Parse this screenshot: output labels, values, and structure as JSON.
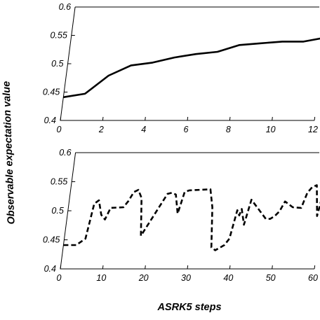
{
  "ylabel": "Observable  expectation  value",
  "xlabel": "ASRK5  steps",
  "chart_data": [
    {
      "type": "line",
      "line_style": "solid",
      "color": "#000000",
      "xlim": [
        0,
        12
      ],
      "ylim": [
        0.4,
        0.6
      ],
      "xticks": [
        "0",
        "2",
        "4",
        "6",
        "8",
        "10",
        "12"
      ],
      "yticks": [
        "0.4",
        "0.45",
        "0.5",
        "0.55",
        "0.6"
      ],
      "x": [
        0,
        1,
        2,
        3,
        4,
        5,
        6,
        7,
        8,
        9,
        10,
        11,
        12
      ],
      "y": [
        0.441,
        0.447,
        0.479,
        0.497,
        0.502,
        0.511,
        0.517,
        0.521,
        0.533,
        0.536,
        0.539,
        0.539,
        0.546
      ],
      "grid": false
    },
    {
      "type": "line",
      "line_style": "dashed",
      "color": "#000000",
      "xlim": [
        0,
        60
      ],
      "ylim": [
        0.4,
        0.6
      ],
      "xticks": [
        "0",
        "10",
        "20",
        "30",
        "40",
        "50",
        "60"
      ],
      "yticks": [
        "0.4",
        "0.45",
        "0.5",
        "0.55",
        "0.6"
      ],
      "x": [
        0,
        3,
        5,
        6,
        7,
        8,
        9,
        10,
        13,
        14,
        15,
        16,
        17,
        18,
        23,
        24,
        25,
        26,
        27,
        28,
        33,
        34,
        35,
        36,
        38,
        39,
        40,
        40.6,
        41,
        42,
        43,
        47,
        48,
        49,
        50,
        51,
        53,
        55,
        56,
        57,
        58,
        59,
        60
      ],
      "y": [
        0.441,
        0.441,
        0.452,
        0.512,
        0.518,
        0.493,
        0.485,
        0.505,
        0.506,
        0.517,
        0.532,
        0.536,
        0.522,
        0.457,
        0.529,
        0.531,
        0.528,
        0.495,
        0.532,
        0.535,
        0.537,
        0.506,
        0.437,
        0.432,
        0.441,
        0.452,
        0.501,
        0.492,
        0.503,
        0.476,
        0.519,
        0.486,
        0.486,
        0.491,
        0.499,
        0.516,
        0.506,
        0.505,
        0.531,
        0.541,
        0.544,
        0.491,
        0.544
      ],
      "grid": false
    }
  ]
}
